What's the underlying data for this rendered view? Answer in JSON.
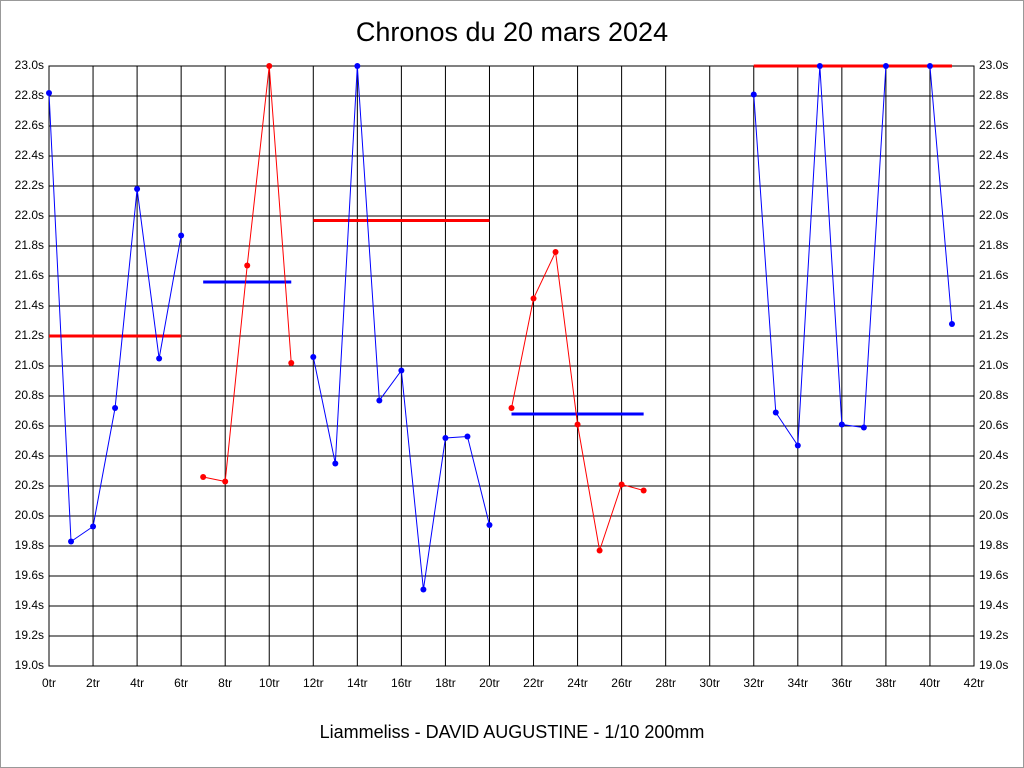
{
  "chart_data": {
    "type": "line",
    "title": "Chronos du 20 mars 2024",
    "footer": "Liammeliss - DAVID AUGUSTINE - 1/10 200mm",
    "x": [
      0,
      1,
      2,
      3,
      4,
      5,
      6,
      7,
      8,
      9,
      10,
      11,
      12,
      13,
      14,
      15,
      16,
      17,
      18,
      19,
      20,
      21,
      22,
      23,
      24,
      25,
      26,
      27,
      28,
      29,
      30,
      31,
      32,
      33,
      34,
      35,
      36,
      37,
      38,
      39,
      40,
      41
    ],
    "series": [
      {
        "color": "#0000ff",
        "values": [
          22.82,
          19.83,
          19.93,
          20.72,
          22.18,
          21.05,
          21.87,
          null,
          null,
          null,
          null,
          null,
          21.06,
          20.35,
          23.0,
          20.77,
          20.97,
          19.51,
          20.52,
          20.53,
          19.94,
          null,
          null,
          null,
          null,
          null,
          null,
          null,
          null,
          null,
          null,
          null,
          22.81,
          20.69,
          20.47,
          23.0,
          20.61,
          20.59,
          23.0,
          null,
          23.0,
          21.28
        ]
      },
      {
        "color": "#ff0000",
        "values": [
          null,
          null,
          null,
          null,
          null,
          null,
          null,
          20.26,
          20.23,
          21.67,
          23.0,
          21.02,
          null,
          null,
          null,
          null,
          null,
          null,
          null,
          null,
          null,
          20.72,
          21.45,
          21.76,
          20.61,
          19.77,
          20.21,
          20.17,
          null,
          null,
          null,
          null,
          null,
          null,
          null,
          null,
          null,
          null,
          null,
          null,
          null,
          null
        ]
      }
    ],
    "averages": [
      {
        "start": 0,
        "end": 6,
        "value": 21.2,
        "color": "#ff0000"
      },
      {
        "start": 7,
        "end": 11,
        "value": 21.56,
        "color": "#0000ff"
      },
      {
        "start": 12,
        "end": 20,
        "value": 21.97,
        "color": "#ff0000"
      },
      {
        "start": 21,
        "end": 27,
        "value": 20.68,
        "color": "#0000ff"
      },
      {
        "start": 32,
        "end": 41,
        "value": 23.0,
        "color": "#ff0000"
      }
    ],
    "xlim": [
      0,
      42
    ],
    "ylim": [
      19.0,
      23.0
    ],
    "xticks": [
      {
        "value": 0,
        "label": "0tr"
      },
      {
        "value": 2,
        "label": "2tr"
      },
      {
        "value": 4,
        "label": "4tr"
      },
      {
        "value": 6,
        "label": "6tr"
      },
      {
        "value": 8,
        "label": "8tr"
      },
      {
        "value": 10,
        "label": "10tr"
      },
      {
        "value": 12,
        "label": "12tr"
      },
      {
        "value": 14,
        "label": "14tr"
      },
      {
        "value": 16,
        "label": "16tr"
      },
      {
        "value": 18,
        "label": "18tr"
      },
      {
        "value": 20,
        "label": "20tr"
      },
      {
        "value": 22,
        "label": "22tr"
      },
      {
        "value": 24,
        "label": "24tr"
      },
      {
        "value": 26,
        "label": "26tr"
      },
      {
        "value": 28,
        "label": "28tr"
      },
      {
        "value": 30,
        "label": "30tr"
      },
      {
        "value": 32,
        "label": "32tr"
      },
      {
        "value": 34,
        "label": "34tr"
      },
      {
        "value": 36,
        "label": "36tr"
      },
      {
        "value": 38,
        "label": "38tr"
      },
      {
        "value": 40,
        "label": "40tr"
      },
      {
        "value": 42,
        "label": "42tr"
      }
    ],
    "yticks": [
      {
        "value": 19.0,
        "label": "19.0s"
      },
      {
        "value": 19.2,
        "label": "19.2s"
      },
      {
        "value": 19.4,
        "label": "19.4s"
      },
      {
        "value": 19.6,
        "label": "19.6s"
      },
      {
        "value": 19.8,
        "label": "19.8s"
      },
      {
        "value": 20.0,
        "label": "20.0s"
      },
      {
        "value": 20.2,
        "label": "20.2s"
      },
      {
        "value": 20.4,
        "label": "20.4s"
      },
      {
        "value": 20.6,
        "label": "20.6s"
      },
      {
        "value": 20.8,
        "label": "20.8s"
      },
      {
        "value": 21.0,
        "label": "21.0s"
      },
      {
        "value": 21.2,
        "label": "21.2s"
      },
      {
        "value": 21.4,
        "label": "21.4s"
      },
      {
        "value": 21.6,
        "label": "21.6s"
      },
      {
        "value": 21.8,
        "label": "21.8s"
      },
      {
        "value": 22.0,
        "label": "22.0s"
      },
      {
        "value": 22.2,
        "label": "22.2s"
      },
      {
        "value": 22.4,
        "label": "22.4s"
      },
      {
        "value": 22.6,
        "label": "22.6s"
      },
      {
        "value": 22.8,
        "label": "22.8s"
      },
      {
        "value": 23.0,
        "label": "23.0s"
      }
    ],
    "grid": true
  }
}
